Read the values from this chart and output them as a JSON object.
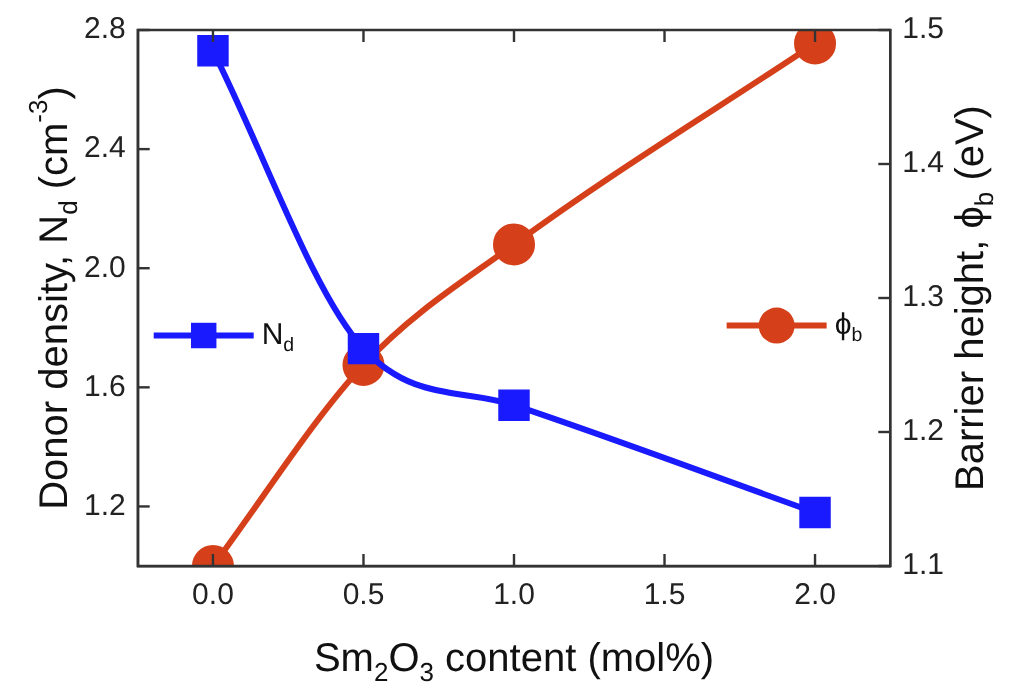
{
  "chart_data": {
    "type": "line",
    "xlabel": "Sm$_{2}$O$_{3}$ content (mol%)",
    "ylabel": "Donor density, N$_{d}$ (cm$^{-3}$)",
    "y2label": "Barrier height, ϕ$_{b}$ (eV)",
    "x": [
      0,
      0.5,
      1,
      2
    ],
    "series": [
      {
        "name": "N$_{d}$",
        "color": "#1a1aff",
        "marker": "square",
        "values": [
          2.73,
          1.73,
          1.54,
          1.18
        ]
      },
      {
        "name": "ϕ$_{b}$",
        "color": "#d5401a",
        "marker": "circle",
        "axis": "y2",
        "values": [
          1.1,
          1.25,
          1.34,
          1.49
        ]
      }
    ],
    "xlim": [
      -0.25,
      2.25
    ],
    "xticks": [
      {
        "value": 0,
        "label": "0.0"
      },
      0.5,
      {
        "value": 1,
        "label": "1.0"
      },
      1.5,
      {
        "value": 2,
        "label": "2.0"
      }
    ],
    "ylim": [
      1.0,
      2.8
    ],
    "yticks": [
      1.2,
      1.6,
      {
        "value": 2,
        "label": "2.0"
      },
      2.4,
      2.8
    ],
    "y2lim": [
      1.1,
      1.5
    ],
    "y2ticks": [
      1.1,
      1.2,
      1.3,
      1.4,
      1.5
    ],
    "grid": false,
    "legend": "center",
    "line_style": "solid"
  }
}
